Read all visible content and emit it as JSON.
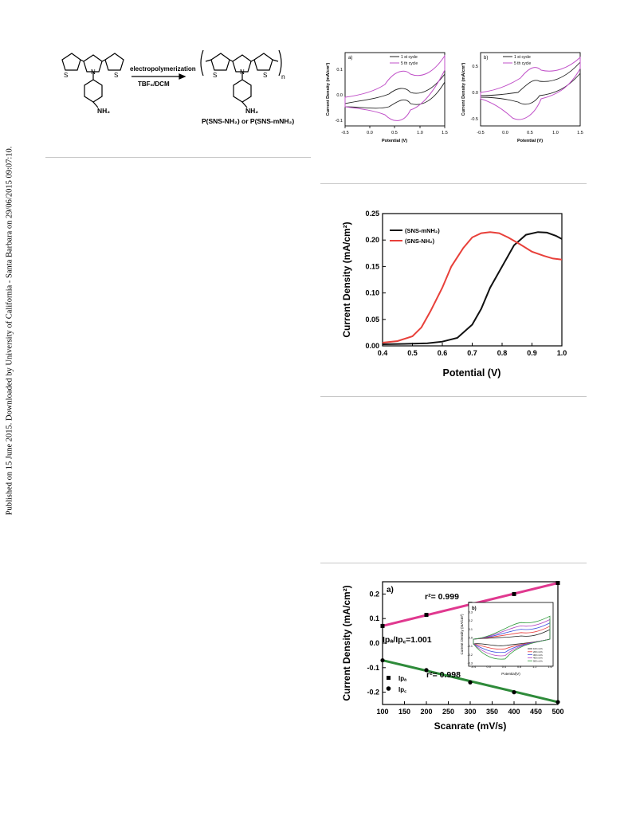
{
  "sidebar": {
    "text": "Published on 15 June 2015. Downloaded by University of California - Santa Barbara on 29/06/2015 09:07:10."
  },
  "scheme": {
    "arrow_top": "electropolymerization",
    "arrow_bottom": "TBF₆/DCM",
    "sub_n": "n",
    "amine": "NH₂",
    "product": "P(SNS-NH₂) or P(SNS-mNH₂)",
    "atom_s": "S",
    "atom_n": "N"
  },
  "fig_cv_a": {
    "panel": "a)",
    "ylabel": "Current Density (mA/cm²)",
    "xlabel": "Potential (V)",
    "xticks": [
      "-0.5",
      "0.0",
      "0.5",
      "1.0",
      "1.5"
    ],
    "yticks": [
      "0.1",
      "0.0",
      "-0.1"
    ],
    "legend": [
      "1 st cycle",
      "5 th cycle"
    ],
    "colors": [
      "#222222",
      "#c050c8"
    ]
  },
  "fig_cv_b": {
    "panel": "b)",
    "ylabel": "Current Density (mA/cm²)",
    "xlabel": "Potential (V)",
    "xticks": [
      "-0.5",
      "0.0",
      "0.5",
      "1.0",
      "1.5"
    ],
    "yticks": [
      "0.5",
      "0.0",
      "-0.5"
    ],
    "legend": [
      "1 st cycle",
      "5 th cycle"
    ],
    "colors": [
      "#222222",
      "#c050c8"
    ]
  },
  "chart_data": [
    {
      "type": "line",
      "ylabel": "Current Density (mA/cm²)",
      "xlabel": "Potential (V)",
      "xlim": [
        0.4,
        1.0
      ],
      "ylim": [
        0.0,
        0.25
      ],
      "xticks": [
        "0.4",
        "0.5",
        "0.6",
        "0.7",
        "0.8",
        "0.9",
        "1.0"
      ],
      "yticks": [
        "0.00",
        "0.05",
        "0.10",
        "0.15",
        "0.20",
        "0.25"
      ],
      "legend_position": "top-left",
      "series": [
        {
          "name": "(SNS-mNH₂)",
          "color": "#111111",
          "x": [
            0.4,
            0.5,
            0.55,
            0.6,
            0.65,
            0.7,
            0.73,
            0.76,
            0.8,
            0.84,
            0.88,
            0.92,
            0.95,
            0.98,
            1.0
          ],
          "y": [
            0.003,
            0.004,
            0.005,
            0.008,
            0.015,
            0.04,
            0.07,
            0.11,
            0.15,
            0.19,
            0.21,
            0.215,
            0.214,
            0.208,
            0.202
          ]
        },
        {
          "name": "(SNS-NH₂)",
          "color": "#e8403a",
          "x": [
            0.4,
            0.45,
            0.5,
            0.53,
            0.56,
            0.6,
            0.63,
            0.67,
            0.7,
            0.73,
            0.76,
            0.79,
            0.82,
            0.86,
            0.9,
            0.94,
            0.97,
            1.0
          ],
          "y": [
            0.006,
            0.009,
            0.018,
            0.035,
            0.065,
            0.11,
            0.15,
            0.185,
            0.205,
            0.213,
            0.215,
            0.213,
            0.205,
            0.192,
            0.178,
            0.17,
            0.165,
            0.163
          ]
        }
      ]
    },
    {
      "type": "scatter",
      "panel": "a)",
      "ylabel": "Current Density (mA/cm²)",
      "xlabel": "Scanrate (mV/s)",
      "xlim": [
        100,
        500
      ],
      "ylim": [
        -0.25,
        0.25
      ],
      "xticks": [
        "100",
        "150",
        "200",
        "250",
        "300",
        "350",
        "400",
        "450",
        "500"
      ],
      "yticks": [
        "0.2",
        "0.1",
        "0.0",
        "-0.1",
        "-0.2"
      ],
      "legend_position": "bottom-left",
      "annotations": [
        "r²= 0.999",
        "Ipₐ/Ip꜀=1.001",
        "r²= 0.998"
      ],
      "series": [
        {
          "name": "Ipₐ",
          "marker": "square",
          "color": "#e0388f",
          "x": [
            100,
            200,
            300,
            400,
            500
          ],
          "y": [
            0.07,
            0.115,
            0.16,
            0.2,
            0.245
          ]
        },
        {
          "name": "Ip꜀",
          "marker": "circle",
          "color": "#2e8b3a",
          "x": [
            100,
            200,
            300,
            400,
            500
          ],
          "y": [
            -0.07,
            -0.11,
            -0.16,
            -0.2,
            -0.24
          ]
        }
      ],
      "inset": {
        "panel": "b)",
        "ylabel": "Current Density (mA/cm²)",
        "xlabel": "Potential(V)",
        "xticks": [
          "-0.4",
          "0.0",
          "0.4",
          "0.8",
          "1.2",
          "1.6"
        ],
        "yticks": [
          "0.3",
          "0.2",
          "0.1",
          "0.0",
          "-0.1",
          "-0.2",
          "-0.3"
        ],
        "legend": [
          "100 mV/s",
          "200 mV/s",
          "300 mV/s",
          "400 mV/s",
          "500 mV/s"
        ],
        "colors": [
          "#222222",
          "#e83a3a",
          "#3a4fe0",
          "#b040c0",
          "#2e9a3a"
        ]
      }
    }
  ]
}
